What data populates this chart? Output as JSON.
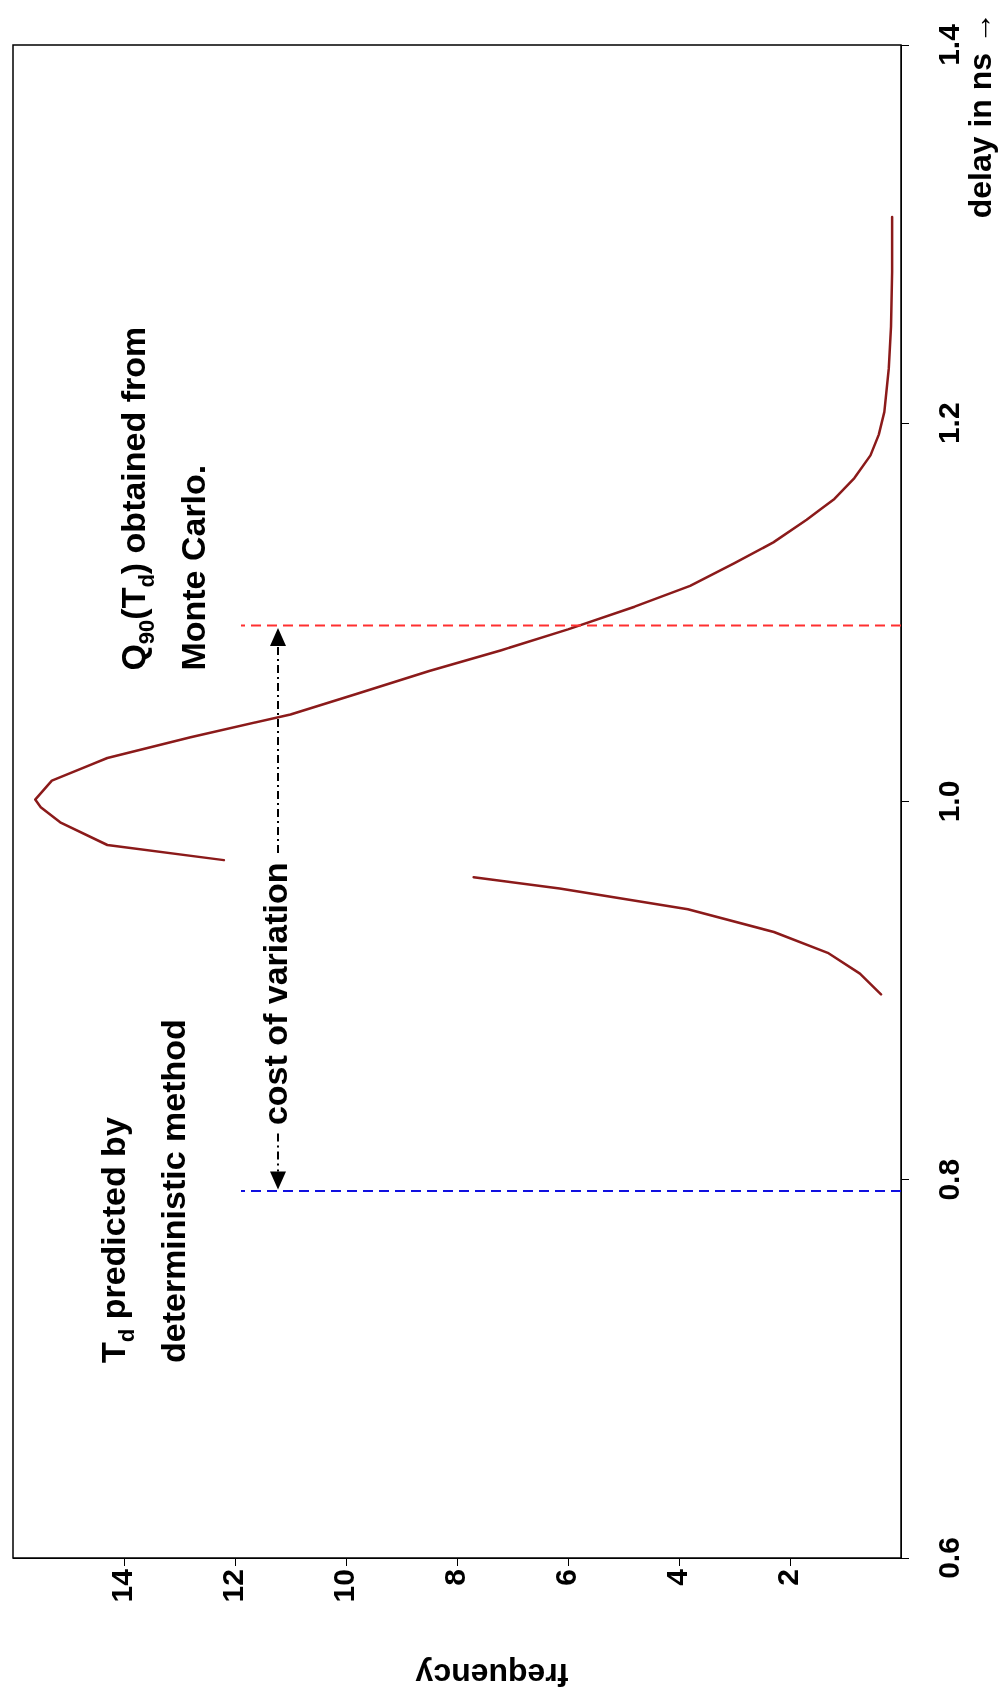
{
  "chart_data": {
    "type": "line",
    "xlabel": "frequency",
    "ylabel": "delay in ns →",
    "xlim": [
      16,
      0
    ],
    "xticks": [
      14,
      12,
      10,
      8,
      6,
      4,
      2
    ],
    "ylim": [
      0.6,
      1.4
    ],
    "yticks": [
      {
        "value": 0.6,
        "label": "0.6"
      },
      {
        "value": 0.8,
        "label": "0.8"
      },
      {
        "value": 1.0,
        "label": "1.0"
      },
      {
        "value": 1.2,
        "label": "1.2"
      },
      {
        "value": 1.4,
        "label": "1.4"
      }
    ],
    "grid": false,
    "legend": false,
    "marker": "none",
    "line_style": "solid",
    "series": [
      {
        "color": "#8b1a1a",
        "x": [
          0.36,
          0.74,
          1.32,
          2.29,
          3.84,
          6.15,
          7.7,
          10,
          12.2,
          14.3,
          15.15,
          15.5,
          15.6,
          15.3,
          14.3,
          12.8,
          11.0,
          9.8,
          8.5,
          7.2,
          6.0,
          4.8,
          3.8,
          3.0,
          2.3,
          1.7,
          1.2,
          0.84,
          0.55,
          0.4,
          0.3,
          0.22,
          0.18,
          0.16,
          0.16
        ],
        "values": [
          0.898,
          0.909,
          0.92,
          0.931,
          0.943,
          0.954,
          0.96,
          null,
          0.969,
          0.977,
          0.989,
          0.997,
          1.001,
          1.011,
          1.023,
          1.034,
          1.046,
          1.057,
          1.069,
          1.08,
          1.091,
          1.103,
          1.114,
          1.126,
          1.137,
          1.149,
          1.16,
          1.171,
          1.183,
          1.194,
          1.206,
          1.229,
          1.251,
          1.28,
          1.309
        ]
      }
    ],
    "ref_lines": [
      {
        "axis": "y",
        "value": 0.794,
        "label": "T$_{d}$ predicted by deterministic method",
        "color": "#1010e0",
        "line_style": "dashed"
      },
      {
        "axis": "y",
        "value": 1.093,
        "label": "Q$_{90}$(T$_{d}$) obtained from Monte Carlo.",
        "color": "#ff3030",
        "line_style": "dashed"
      }
    ],
    "annotations": [
      "cost of variation"
    ]
  }
}
